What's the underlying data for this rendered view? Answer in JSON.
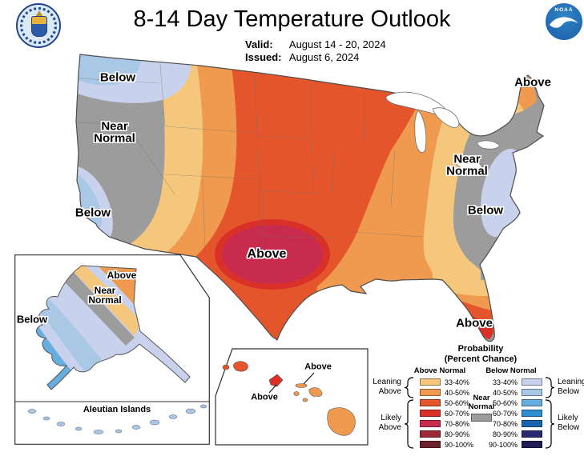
{
  "header": {
    "title": "8-14 Day Temperature Outlook",
    "valid_label": "Valid:",
    "valid_value": "August 14 - 20, 2024",
    "issued_label": "Issued:",
    "issued_value": "August 6, 2024",
    "noaa_text": "NOAA"
  },
  "map_labels": {
    "nw_below": "Below",
    "west_near_normal": "Near Normal",
    "socal_below": "Below",
    "central_above": "Above",
    "ne_above": "Above",
    "mid_atlantic_near_normal": "Near Normal",
    "east_below": "Below",
    "florida_above": "Above"
  },
  "alaska": {
    "above": "Above",
    "near_normal": "Near Normal",
    "below": "Below",
    "aleutian": "Aleutian Islands"
  },
  "hawaii": {
    "above_west": "Above",
    "above_east": "Above"
  },
  "legend": {
    "title_line1": "Probability",
    "title_line2": "(Percent Chance)",
    "above_header": "Above Normal",
    "below_header": "Below Normal",
    "near_line1": "Near",
    "near_line2": "Normal",
    "rows": [
      "33-40%",
      "40-50%",
      "50-60%",
      "60-70%",
      "70-80%",
      "80-90%",
      "90-100%"
    ],
    "leaning_above_line1": "Leaning",
    "leaning_above_line2": "Above",
    "likely_above_line1": "Likely",
    "likely_above_line2": "Above",
    "leaning_below_line1": "Leaning",
    "leaning_below_line2": "Below",
    "likely_below_line1": "Likely",
    "likely_below_line2": "Below"
  },
  "colors": {
    "above": [
      "#F4C77C",
      "#EF9A4E",
      "#E4552B",
      "#D93027",
      "#C92B4E",
      "#9A2A35",
      "#6B2129"
    ],
    "below": [
      "#C9D2ED",
      "#A9C8E6",
      "#66AEE0",
      "#2E8FD0",
      "#1A64AE",
      "#2A2A72",
      "#1E1E55"
    ],
    "near": "#9C9C9C",
    "outline": "#4d4d4d"
  }
}
